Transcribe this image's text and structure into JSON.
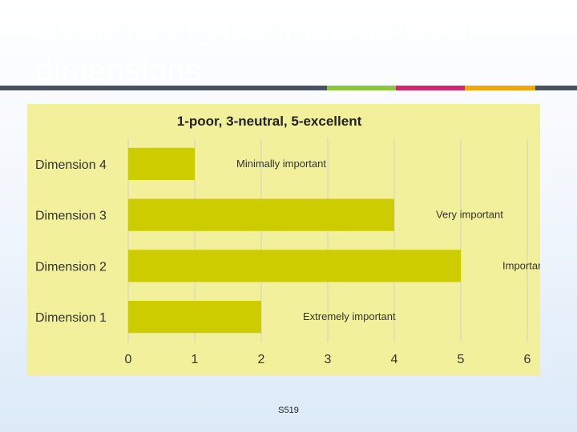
{
  "slide": {
    "title": "Determining the importance of dimensions",
    "footer": "S519"
  },
  "colors": {
    "chart_background": "#f2f09a",
    "bar_fill": "#cccc00",
    "grid_line": "#d2d2d2",
    "text": "#333333",
    "rule_gray": "#4a5160",
    "rule_green": "#8cc63f",
    "rule_pink": "#d6246e",
    "rule_orange": "#f2a60d"
  },
  "chart_data": {
    "type": "bar",
    "orientation": "horizontal",
    "title": "1-poor, 3-neutral, 5-excellent",
    "categories": [
      "Dimension 4",
      "Dimension 3",
      "Dimension 2",
      "Dimension 1"
    ],
    "values": [
      1,
      4,
      5,
      2
    ],
    "annotations": [
      "Minimally important",
      "Very important",
      "Important",
      "Extremely important"
    ],
    "xlim": [
      0,
      6
    ],
    "xticks": [
      "0",
      "1",
      "2",
      "3",
      "4",
      "5",
      "6"
    ],
    "grid": true,
    "legend": "none"
  }
}
